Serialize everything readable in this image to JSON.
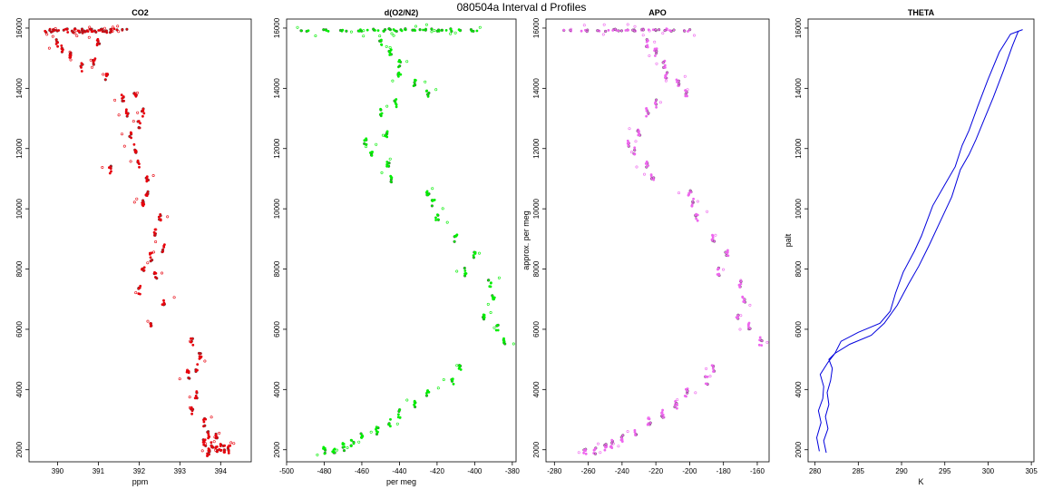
{
  "page": {
    "title": "080504a   Interval d Profiles"
  },
  "chart_data": [
    {
      "type": "scatter",
      "title": "CO2",
      "xlabel": "ppm",
      "ylabel": "",
      "xlim": [
        389.3,
        394.75
      ],
      "ylim": [
        1600,
        16300
      ],
      "xticks": [
        390,
        391,
        392,
        393,
        394
      ],
      "yticks": [
        2000,
        4000,
        6000,
        8000,
        10000,
        12000,
        14000,
        16000
      ],
      "color": "#e8000b",
      "series": [
        {
          "x": [
            389.9,
            390.2,
            390.5,
            390.8,
            391.1,
            391.4,
            391.6,
            390.3,
            390.9,
            391.3,
            389.8,
            390.6,
            391.2,
            390.0,
            390.7
          ],
          "y": [
            15950,
            15950,
            15950,
            15950,
            15950,
            15950,
            15950,
            15880,
            15880,
            15880,
            15880,
            15880,
            15880,
            15900,
            15900
          ]
        },
        {
          "x": [
            390.0,
            390.3,
            390.1,
            390.6,
            390.9,
            391.0,
            391.2,
            391.6,
            391.7,
            391.9,
            392.0,
            392.1,
            391.8,
            391.9,
            391.3,
            392.0,
            392.2,
            392.1,
            392.2,
            392.5,
            392.4,
            392.6,
            392.3,
            392.1,
            392.4,
            392.0,
            392.6,
            392.3,
            393.3,
            393.5,
            393.4,
            393.2,
            393.4,
            393.3,
            393.6,
            393.7,
            393.8,
            393.9,
            393.7,
            394.0,
            393.6,
            393.9,
            394.1,
            393.7,
            394.2
          ],
          "y": [
            15500,
            15150,
            15300,
            14700,
            14900,
            15500,
            14350,
            13700,
            13200,
            13800,
            12800,
            13200,
            12400,
            12000,
            11300,
            11500,
            11000,
            10200,
            10450,
            9700,
            9200,
            8700,
            8400,
            8000,
            7800,
            7300,
            6900,
            6100,
            5600,
            5100,
            4700,
            4500,
            3800,
            3300,
            2900,
            2500,
            2200,
            2000,
            1950,
            2100,
            2200,
            2400,
            2050,
            1900,
            2000
          ]
        }
      ]
    },
    {
      "type": "scatter",
      "title": "d(O2/N2)",
      "xlabel": "per meg",
      "ylabel": "",
      "xlim": [
        -500,
        -378
      ],
      "ylim": [
        1600,
        16300
      ],
      "xticks": [
        -500,
        -480,
        -460,
        -440,
        -420,
        -400,
        -380
      ],
      "yticks": [
        2000,
        4000,
        6000,
        8000,
        10000,
        12000,
        14000,
        16000
      ],
      "color": "#00ee00",
      "series": [
        {
          "x": [
            -490,
            -480,
            -470,
            -460,
            -450,
            -440,
            -430,
            -420,
            -410,
            -400,
            -455,
            -445,
            -435,
            -425,
            -415
          ],
          "y": [
            15920,
            15920,
            15920,
            15920,
            15920,
            15920,
            15920,
            15920,
            15920,
            15920,
            15950,
            15950,
            15950,
            15950,
            15950
          ]
        },
        {
          "x": [
            -450,
            -445,
            -440,
            -440,
            -432,
            -425,
            -442,
            -450,
            -447,
            -458,
            -455,
            -446,
            -444,
            -425,
            -422,
            -420,
            -410,
            -400,
            -405,
            -392,
            -390,
            -395,
            -388,
            -384,
            -408,
            -412,
            -425,
            -432,
            -440,
            -445,
            -452,
            -460,
            -465,
            -470,
            -475,
            -480
          ],
          "y": [
            15500,
            15200,
            14800,
            14400,
            14200,
            13800,
            13500,
            13200,
            12500,
            12200,
            11900,
            11500,
            11000,
            10500,
            10200,
            9700,
            9000,
            8500,
            7900,
            7500,
            7000,
            6400,
            6100,
            5600,
            4700,
            4300,
            3900,
            3500,
            3200,
            2900,
            2600,
            2400,
            2200,
            2100,
            2000,
            1950
          ]
        }
      ]
    },
    {
      "type": "scatter",
      "title": "APO",
      "xlabel": "",
      "ylabel": "approx. per meg",
      "xlim": [
        -285,
        -153
      ],
      "ylim": [
        1600,
        16300
      ],
      "xticks": [
        -280,
        -260,
        -240,
        -220,
        -200,
        -180,
        -160
      ],
      "yticks": [
        2000,
        4000,
        6000,
        8000,
        10000,
        12000,
        14000,
        16000
      ],
      "color": "#ee66ee",
      "series": [
        {
          "x": [
            -272,
            -262,
            -252,
            -242,
            -232,
            -222,
            -212,
            -202,
            -246,
            -236,
            -226,
            -216
          ],
          "y": [
            15920,
            15920,
            15920,
            15920,
            15920,
            15920,
            15920,
            15920,
            15950,
            15950,
            15950,
            15950
          ]
        },
        {
          "x": [
            -225,
            -220,
            -215,
            -214,
            -207,
            -202,
            -220,
            -225,
            -230,
            -236,
            -233,
            -225,
            -222,
            -200,
            -198,
            -196,
            -186,
            -178,
            -183,
            -170,
            -168,
            -172,
            -165,
            -158,
            -186,
            -190,
            -202,
            -208,
            -216,
            -224,
            -232,
            -240,
            -246,
            -250,
            -256,
            -262
          ],
          "y": [
            15500,
            15200,
            14800,
            14400,
            14200,
            13800,
            13500,
            13200,
            12500,
            12200,
            11900,
            11500,
            11000,
            10500,
            10200,
            9700,
            9000,
            8500,
            7900,
            7500,
            7000,
            6400,
            6100,
            5600,
            4700,
            4300,
            3900,
            3500,
            3200,
            2900,
            2600,
            2400,
            2200,
            2100,
            2000,
            1950
          ]
        }
      ]
    },
    {
      "type": "line",
      "title": "THETA",
      "xlabel": "K",
      "ylabel": "palt",
      "xlim": [
        279.2,
        305.3
      ],
      "ylim": [
        1600,
        16300
      ],
      "xticks": [
        280,
        285,
        290,
        295,
        300,
        305
      ],
      "yticks": [
        2000,
        4000,
        6000,
        8000,
        10000,
        12000,
        14000,
        16000
      ],
      "color": "#0000dd",
      "series": [
        {
          "x": [
            281.3,
            281.0,
            281.5,
            281.2,
            281.6,
            281.4,
            281.8,
            282.0,
            281.6,
            282.3,
            283.0,
            285.0,
            287.5,
            288.7,
            289.3,
            290.2,
            291.5,
            292.3,
            293.6,
            295.0,
            296.2,
            297.0,
            297.8,
            298.8,
            300.0,
            301.3,
            302.6,
            304.0
          ],
          "y": [
            1900,
            2300,
            2700,
            3100,
            3500,
            3900,
            4300,
            4700,
            5000,
            5200,
            5600,
            5900,
            6200,
            6600,
            7200,
            7900,
            8600,
            9100,
            10100,
            10800,
            11400,
            12100,
            12600,
            13400,
            14300,
            15200,
            15800,
            15950
          ]
        },
        {
          "x": [
            280.5,
            280.2,
            280.7,
            280.4,
            280.9,
            281.0,
            280.6,
            281.5,
            282.3,
            284.0,
            286.5,
            288.0,
            289.5,
            290.8,
            292.0,
            293.2,
            294.5,
            295.8,
            296.8,
            297.8,
            298.6,
            299.6,
            300.6,
            301.8,
            302.8,
            303.5
          ],
          "y": [
            1950,
            2400,
            2900,
            3300,
            3700,
            4100,
            4500,
            4900,
            5200,
            5500,
            5800,
            6200,
            6800,
            7500,
            8100,
            8800,
            9600,
            10400,
            11300,
            11800,
            12300,
            13000,
            13700,
            14600,
            15400,
            15900
          ]
        }
      ]
    }
  ]
}
